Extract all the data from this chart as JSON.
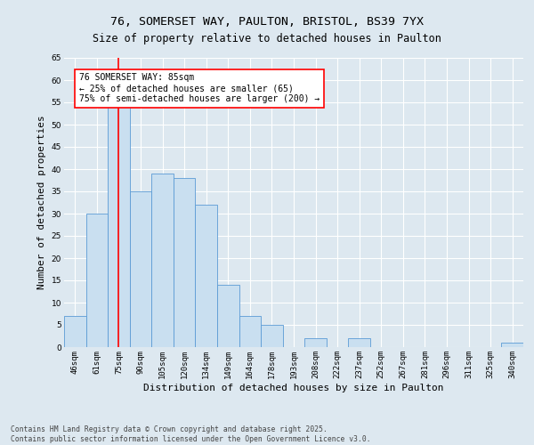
{
  "title_line1": "76, SOMERSET WAY, PAULTON, BRISTOL, BS39 7YX",
  "title_line2": "Size of property relative to detached houses in Paulton",
  "xlabel": "Distribution of detached houses by size in Paulton",
  "ylabel": "Number of detached properties",
  "categories": [
    "46sqm",
    "61sqm",
    "75sqm",
    "90sqm",
    "105sqm",
    "120sqm",
    "134sqm",
    "149sqm",
    "164sqm",
    "178sqm",
    "193sqm",
    "208sqm",
    "222sqm",
    "237sqm",
    "252sqm",
    "267sqm",
    "281sqm",
    "296sqm",
    "311sqm",
    "325sqm",
    "340sqm"
  ],
  "values": [
    7,
    30,
    54,
    35,
    39,
    38,
    32,
    14,
    7,
    5,
    0,
    2,
    0,
    2,
    0,
    0,
    0,
    0,
    0,
    0,
    1
  ],
  "bar_color": "#c9dff0",
  "bar_edge_color": "#5b9bd5",
  "red_line_x": 2.0,
  "annotation_text": "76 SOMERSET WAY: 85sqm\n← 25% of detached houses are smaller (65)\n75% of semi-detached houses are larger (200) →",
  "annotation_box_color": "white",
  "annotation_box_edge": "red",
  "ylim": [
    0,
    65
  ],
  "yticks": [
    0,
    5,
    10,
    15,
    20,
    25,
    30,
    35,
    40,
    45,
    50,
    55,
    60,
    65
  ],
  "background_color": "#dde8f0",
  "grid_color": "white",
  "footer_text": "Contains HM Land Registry data © Crown copyright and database right 2025.\nContains public sector information licensed under the Open Government Licence v3.0.",
  "title_fontsize": 9.5,
  "subtitle_fontsize": 8.5,
  "tick_fontsize": 6.5,
  "label_fontsize": 8,
  "annotation_fontsize": 7,
  "footer_fontsize": 5.8
}
